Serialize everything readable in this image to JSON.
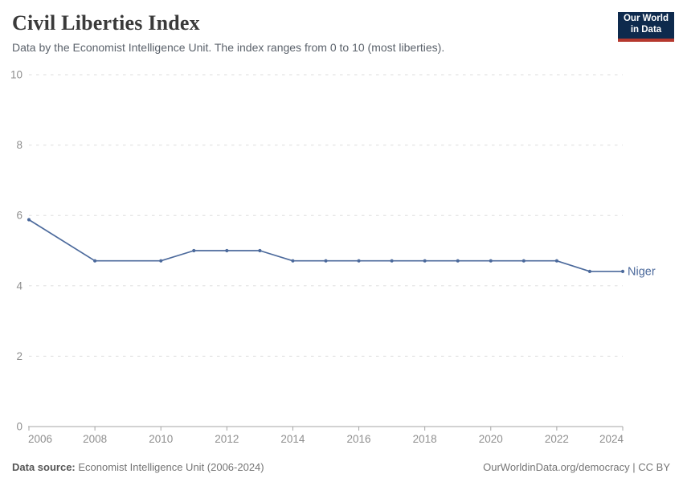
{
  "header": {
    "title": "Civil Liberties Index",
    "subtitle": "Data by the Economist Intelligence Unit. The index ranges from 0 to 10 (most liberties)."
  },
  "logo": {
    "line1": "Our World",
    "line2": "in Data",
    "bg_color": "#0e2a4d",
    "bar_color": "#b5382e",
    "text_color": "#ffffff"
  },
  "chart_data": {
    "type": "line",
    "title": "Civil Liberties Index",
    "xlabel": "",
    "ylabel": "",
    "xlim": [
      2006,
      2024
    ],
    "ylim": [
      0,
      10
    ],
    "xticks": [
      2006,
      2008,
      2010,
      2012,
      2014,
      2016,
      2018,
      2020,
      2022,
      2024
    ],
    "yticks": [
      0,
      2,
      4,
      6,
      8,
      10
    ],
    "grid": "horizontal-dashed",
    "legend_position": "end-of-line-label",
    "series": [
      {
        "name": "Niger",
        "color": "#4c6a9c",
        "x": [
          2006,
          2008,
          2010,
          2011,
          2012,
          2013,
          2014,
          2015,
          2016,
          2017,
          2018,
          2019,
          2020,
          2021,
          2022,
          2023,
          2024
        ],
        "y": [
          5.88,
          4.71,
          4.71,
          5.0,
          5.0,
          5.0,
          4.71,
          4.71,
          4.71,
          4.71,
          4.71,
          4.71,
          4.71,
          4.71,
          4.71,
          4.41,
          4.41
        ]
      }
    ],
    "style": {
      "grid_color": "#dddddd",
      "axis_color": "#a5a5a5",
      "tick_label_color": "#8f8f8f"
    }
  },
  "footer": {
    "datasource_label": "Data source:",
    "datasource_value": "Economist Intelligence Unit (2006-2024)",
    "attribution": "OurWorldinData.org/democracy | CC BY"
  }
}
